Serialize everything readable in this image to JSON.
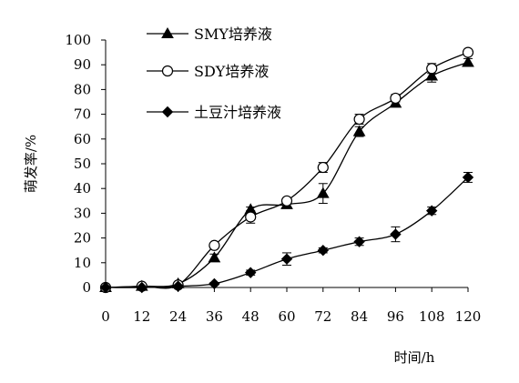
{
  "chart_data": {
    "type": "line",
    "xlabel": "时间/h",
    "ylabel": "萌发率/%",
    "xlim": [
      0,
      120
    ],
    "ylim": [
      0,
      100
    ],
    "x_ticks": [
      0,
      12,
      24,
      36,
      48,
      60,
      72,
      84,
      96,
      108,
      120
    ],
    "y_ticks": [
      0,
      10,
      20,
      30,
      40,
      50,
      60,
      70,
      80,
      90,
      100
    ],
    "grid": false,
    "legend_position": "top-left",
    "x": [
      0,
      12,
      24,
      36,
      48,
      60,
      72,
      84,
      96,
      108,
      120
    ],
    "series": [
      {
        "name": "SMY培养液",
        "marker": "triangle",
        "values": [
          0,
          0.5,
          1.5,
          12,
          31.5,
          33.5,
          38,
          63,
          74.5,
          85.5,
          91
        ],
        "errors": [
          0,
          0.5,
          0.5,
          1.5,
          1,
          1.5,
          4,
          2,
          1.5,
          2.5,
          1.5
        ]
      },
      {
        "name": "SDY培养液",
        "marker": "circle-open",
        "values": [
          0,
          0.5,
          1,
          17,
          28.5,
          35,
          48.5,
          68,
          76.5,
          88.5,
          95
        ],
        "errors": [
          0,
          0.5,
          0.5,
          1,
          2.5,
          1,
          2,
          2,
          1.5,
          2,
          1
        ]
      },
      {
        "name": "土豆汁培养液",
        "marker": "diamond",
        "values": [
          0,
          0,
          0.5,
          1.5,
          6,
          11.5,
          15,
          18.5,
          21.5,
          31,
          44.5
        ],
        "errors": [
          0,
          0,
          0.5,
          0.5,
          1,
          2.5,
          1,
          1.5,
          3,
          1.5,
          2
        ]
      }
    ]
  }
}
